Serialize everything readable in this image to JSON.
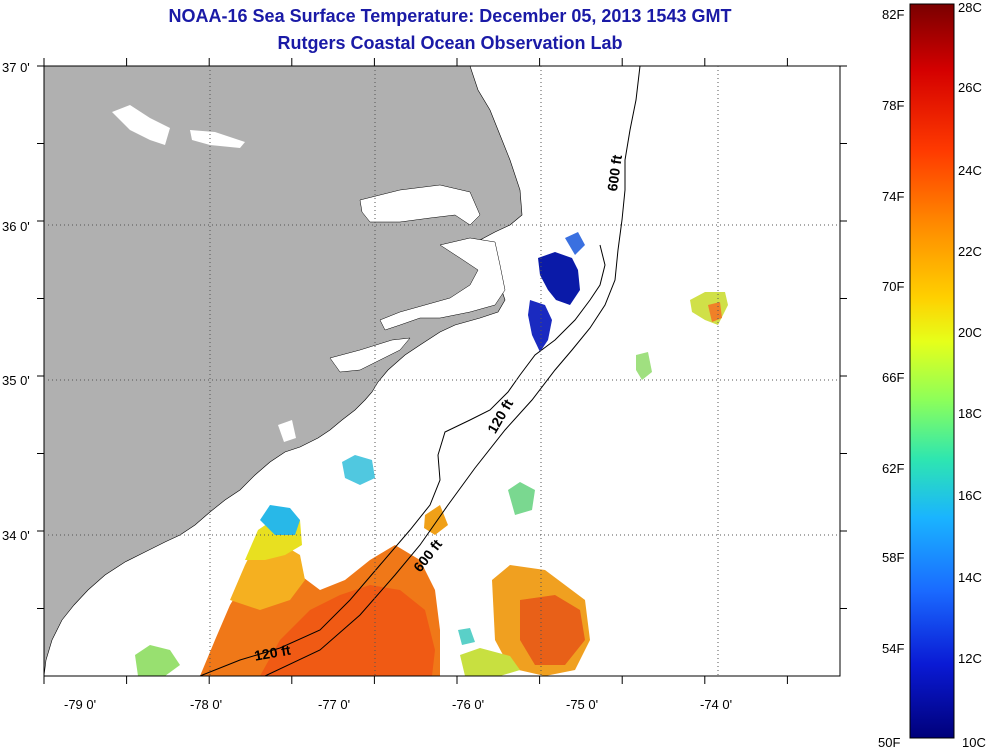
{
  "title": {
    "line1": "NOAA-16 Sea Surface Temperature:  December 05, 2013 1543 GMT",
    "line2": "Rutgers Coastal Ocean Observation Lab"
  },
  "map": {
    "lat_labels": [
      "37 0'",
      "36 0'",
      "35 0'",
      "34 0'"
    ],
    "lon_labels": [
      "-79 0'",
      "-78 0'",
      "-77 0'",
      "-76 0'",
      "-75 0'",
      "-74 0'"
    ],
    "contour_labels": [
      "600 ft",
      "120 ft",
      "600 ft",
      "120 ft"
    ],
    "colors": {
      "land": "#b0b0b0",
      "ocean": "#ffffff",
      "no_data": "#ffffff"
    }
  },
  "colorbar": {
    "fahrenheit_labels": [
      "82F",
      "78F",
      "74F",
      "70F",
      "66F",
      "62F",
      "58F",
      "54F",
      "50F"
    ],
    "celsius_labels": [
      "28C",
      "26C",
      "24C",
      "22C",
      "20C",
      "18C",
      "16C",
      "14C",
      "12C",
      "10C"
    ],
    "stops": [
      "#7a0000",
      "#d40000",
      "#ff3a00",
      "#ff8a00",
      "#ffd000",
      "#e6ff1a",
      "#8cff5a",
      "#2ee6b0",
      "#1ab4ff",
      "#1a6aff",
      "#0a1ad4",
      "#00007a"
    ]
  }
}
